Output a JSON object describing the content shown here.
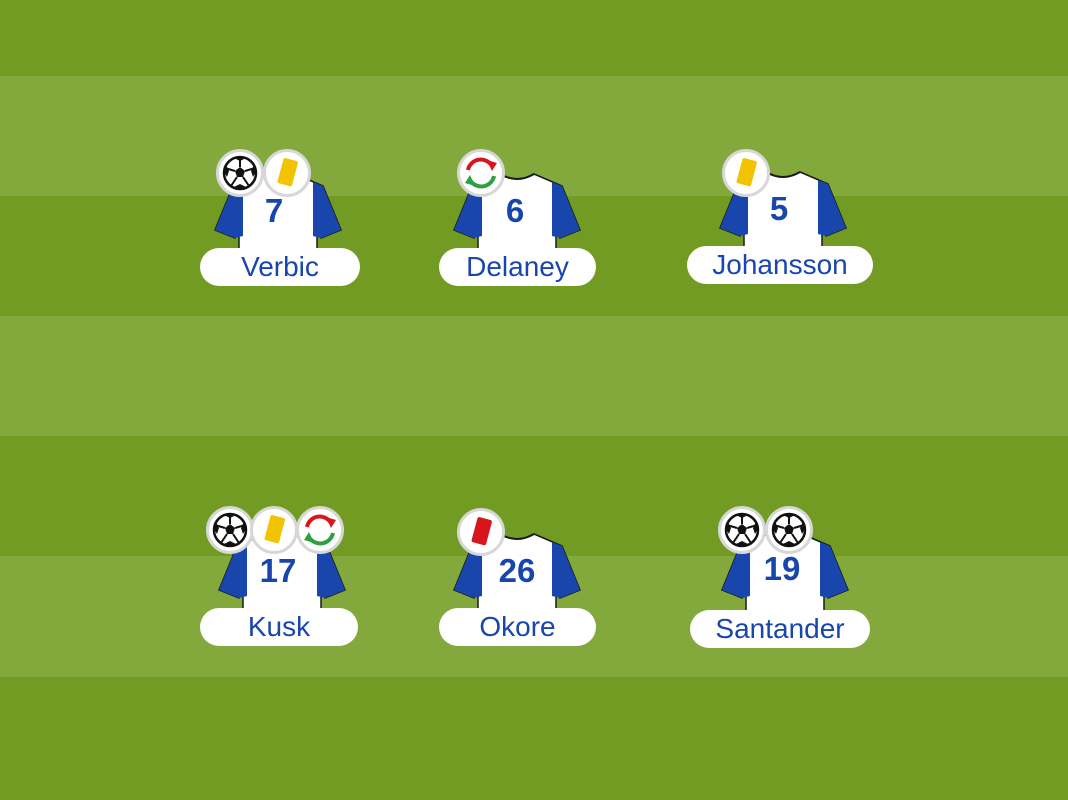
{
  "colors": {
    "pitch_dark": "#719b22",
    "pitch_light": "#83a83c",
    "shirt_body": "#ffffff",
    "shirt_sleeve": "#1846ac",
    "number": "#1846ac",
    "yellow_card": "#f2c300",
    "red_card": "#d7161b",
    "sub_red": "#d7161b",
    "sub_green": "#2ea043"
  },
  "players": [
    {
      "number": "7",
      "name": "Verbic",
      "events": [
        "goal-icon",
        "yellow-card-icon"
      ]
    },
    {
      "number": "6",
      "name": "Delaney",
      "events": [
        "substitution-icon"
      ]
    },
    {
      "number": "5",
      "name": "Johansson",
      "events": [
        "yellow-card-icon"
      ]
    },
    {
      "number": "17",
      "name": "Kusk",
      "events": [
        "goal-icon",
        "yellow-card-icon",
        "substitution-icon"
      ]
    },
    {
      "number": "26",
      "name": "Okore",
      "events": [
        "red-card-icon"
      ]
    },
    {
      "number": "19",
      "name": "Santander",
      "events": [
        "goal-icon",
        "goal-icon"
      ]
    }
  ]
}
